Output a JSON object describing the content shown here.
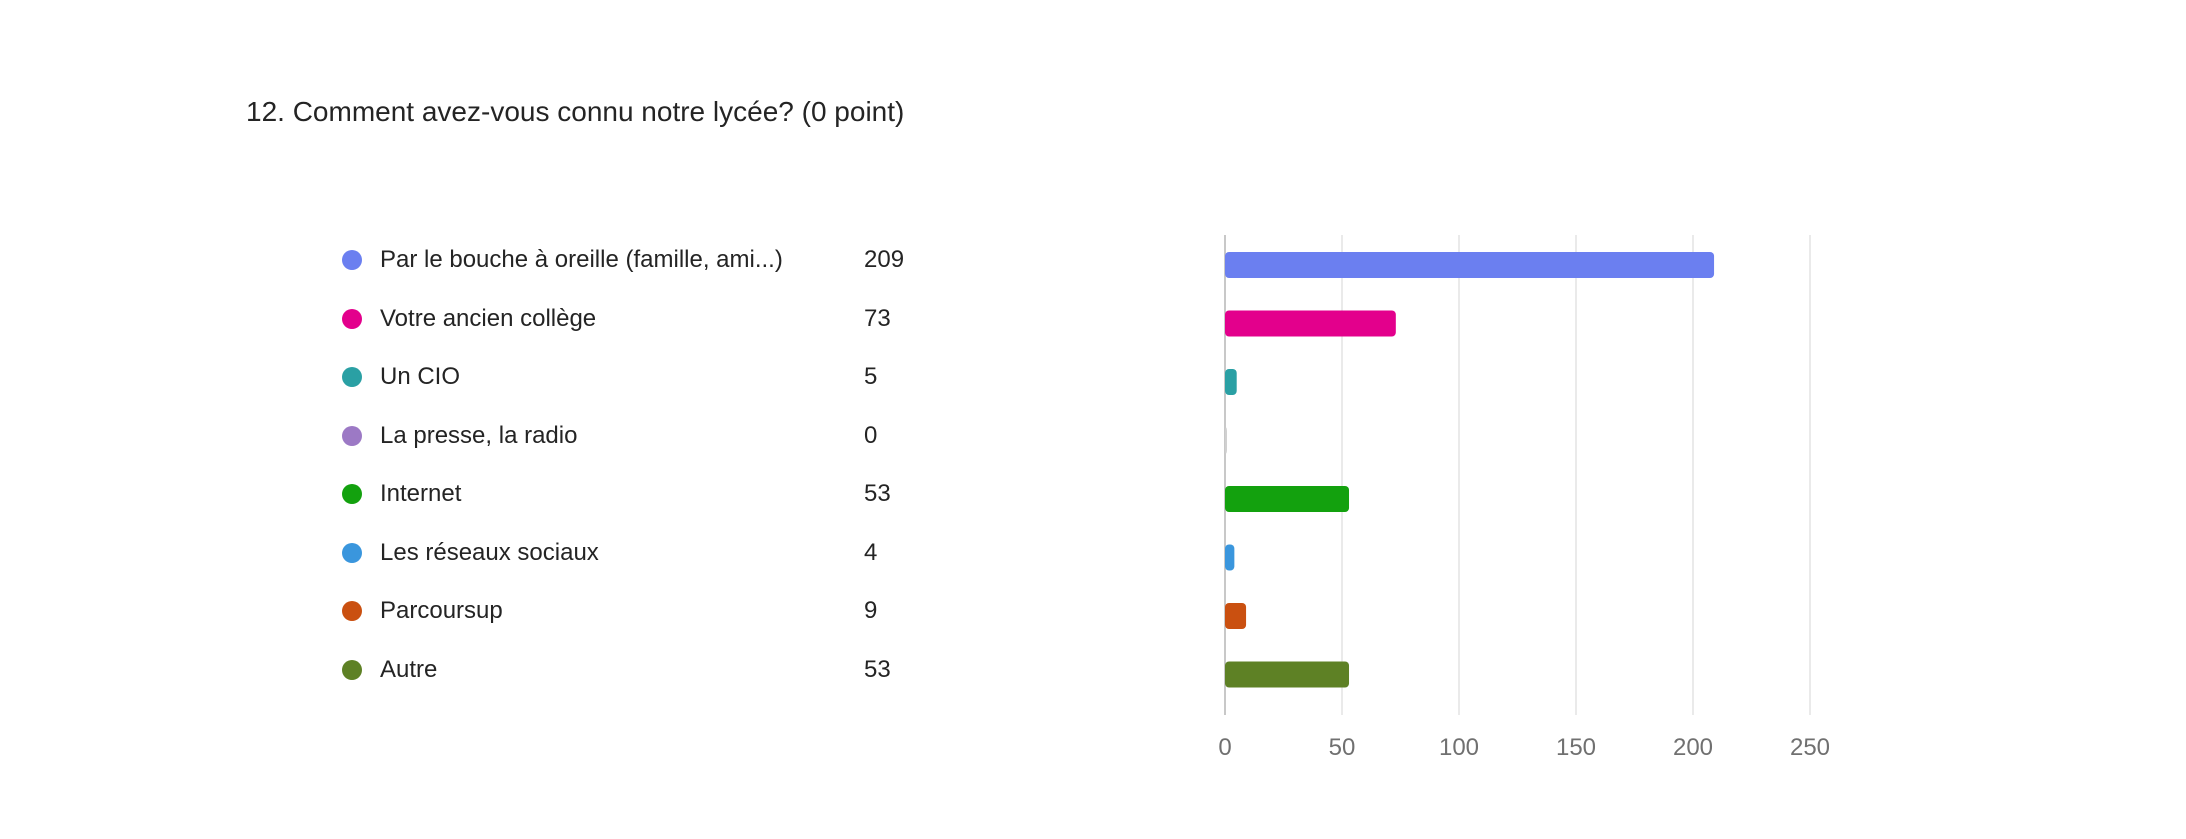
{
  "question": {
    "title": "12. Comment avez-vous connu notre lycée? (0 point)"
  },
  "chart_data": {
    "type": "bar",
    "orientation": "horizontal",
    "title": "12. Comment avez-vous connu notre lycée? (0 point)",
    "categories": [
      "Par le bouche à oreille (famille, ami...)",
      "Votre ancien collège",
      "Un CIO",
      "La presse, la radio",
      "Internet",
      "Les réseaux sociaux",
      "Parcoursup",
      "Autre"
    ],
    "values": [
      209,
      73,
      5,
      0,
      53,
      4,
      9,
      53
    ],
    "colors": [
      "#6b7ff0",
      "#e3008c",
      "#2aa0a4",
      "#9c79c5",
      "#13a10e",
      "#3a96dd",
      "#ca5010",
      "#5e8125"
    ],
    "xlim": [
      0,
      250
    ],
    "xticks": [
      "0",
      "50",
      "100",
      "150",
      "200",
      "250"
    ],
    "grid": true,
    "legend_placement": "left"
  }
}
